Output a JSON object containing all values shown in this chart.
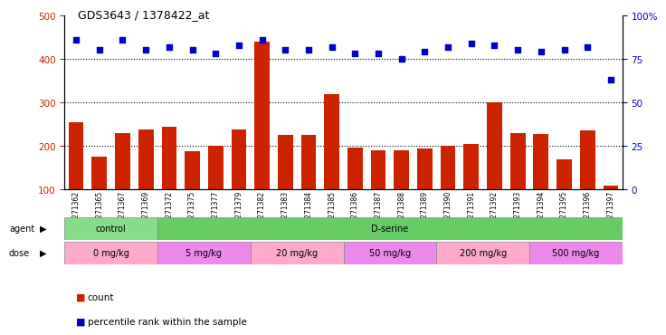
{
  "title": "GDS3643 / 1378422_at",
  "samples": [
    "GSM271362",
    "GSM271365",
    "GSM271367",
    "GSM271369",
    "GSM271372",
    "GSM271375",
    "GSM271377",
    "GSM271379",
    "GSM271382",
    "GSM271383",
    "GSM271384",
    "GSM271385",
    "GSM271386",
    "GSM271387",
    "GSM271388",
    "GSM271389",
    "GSM271390",
    "GSM271391",
    "GSM271392",
    "GSM271393",
    "GSM271394",
    "GSM271395",
    "GSM271396",
    "GSM271397"
  ],
  "counts": [
    255,
    175,
    230,
    237,
    243,
    188,
    200,
    238,
    440,
    225,
    225,
    318,
    195,
    190,
    190,
    193,
    200,
    205,
    300,
    230,
    228,
    168,
    235,
    108
  ],
  "percentile_rank": [
    86,
    80,
    86,
    80,
    82,
    80,
    78,
    83,
    86,
    80,
    80,
    82,
    78,
    78,
    75,
    79,
    82,
    84,
    83,
    80,
    79,
    80,
    82,
    63
  ],
  "agent_groups": [
    {
      "label": "control",
      "start": 0,
      "end": 4,
      "color": "#88DD88"
    },
    {
      "label": "D-serine",
      "start": 4,
      "end": 24,
      "color": "#66CC66"
    }
  ],
  "dose_groups": [
    {
      "label": "0 mg/kg",
      "start": 0,
      "end": 4,
      "color": "#FFAACC"
    },
    {
      "label": "5 mg/kg",
      "start": 4,
      "end": 8,
      "color": "#EE88EE"
    },
    {
      "label": "20 mg/kg",
      "start": 8,
      "end": 12,
      "color": "#FFAACC"
    },
    {
      "label": "50 mg/kg",
      "start": 12,
      "end": 16,
      "color": "#EE88EE"
    },
    {
      "label": "200 mg/kg",
      "start": 16,
      "end": 20,
      "color": "#FFAACC"
    },
    {
      "label": "500 mg/kg",
      "start": 20,
      "end": 24,
      "color": "#EE88EE"
    }
  ],
  "bar_color": "#CC2200",
  "dot_color": "#0000CC",
  "left_ylim": [
    100,
    500
  ],
  "left_yticks": [
    100,
    200,
    300,
    400,
    500
  ],
  "right_ylim": [
    0,
    100
  ],
  "right_yticks": [
    0,
    25,
    50,
    75,
    100
  ],
  "grid_lines": [
    200,
    300,
    400
  ]
}
